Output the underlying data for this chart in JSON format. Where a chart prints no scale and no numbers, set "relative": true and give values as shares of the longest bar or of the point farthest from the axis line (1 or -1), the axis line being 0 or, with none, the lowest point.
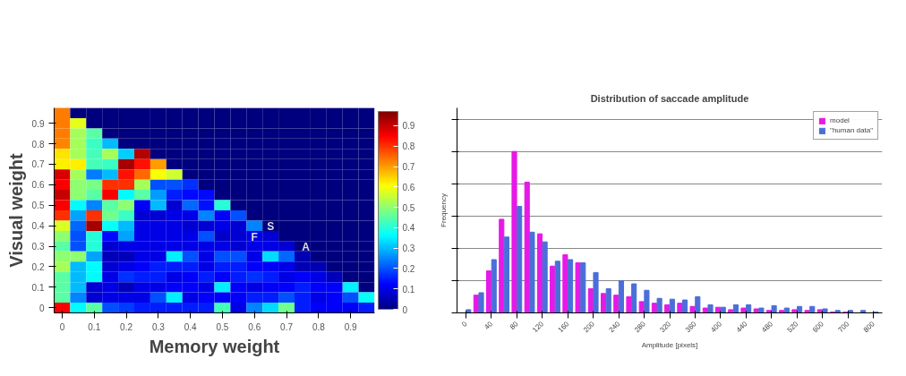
{
  "chart_data": [
    {
      "type": "heatmap",
      "xlabel": "Memory weight",
      "ylabel": "Visual weight",
      "categories": [
        "0",
        null,
        "0.1",
        null,
        "0.2",
        null,
        "0.3",
        null,
        "0.4",
        null,
        "0.5",
        null,
        "0.6",
        null,
        "0.7",
        null,
        "0.8",
        null,
        "0.9",
        null
      ],
      "y_categories": [
        null,
        "0.9",
        null,
        "0.8",
        null,
        "0.7",
        null,
        "0.6",
        null,
        "0.5",
        null,
        "0.4",
        null,
        "0.3",
        null,
        "0.2",
        null,
        "0.1",
        null,
        "0"
      ],
      "clim": [
        0,
        0.97
      ],
      "cticks": [
        0,
        0.1,
        0.2,
        0.3,
        0.4,
        0.5,
        0.6,
        0.7,
        0.8,
        0.9
      ],
      "annotations": [
        "S",
        "F",
        "A"
      ],
      "cells": [
        [
          0.73,
          0,
          0,
          0,
          0,
          0,
          0,
          0,
          0,
          0,
          0,
          0,
          0,
          0,
          0,
          0,
          0,
          0,
          0,
          0
        ],
        [
          0.73,
          0.58,
          0,
          0,
          0,
          0,
          0,
          0,
          0,
          0,
          0,
          0,
          0,
          0,
          0,
          0,
          0,
          0,
          0,
          0
        ],
        [
          0.73,
          0.52,
          0.45,
          0,
          0,
          0,
          0,
          0,
          0,
          0,
          0,
          0,
          0,
          0,
          0,
          0,
          0,
          0,
          0,
          0
        ],
        [
          0.72,
          0.52,
          0.42,
          0.3,
          0,
          0,
          0,
          0,
          0,
          0,
          0,
          0,
          0,
          0,
          0,
          0,
          0,
          0,
          0,
          0
        ],
        [
          0.63,
          0.52,
          0.43,
          0.52,
          0.32,
          0.92,
          0,
          0,
          0,
          0,
          0,
          0,
          0,
          0,
          0,
          0,
          0,
          0,
          0,
          0
        ],
        [
          0.62,
          0.62,
          0.43,
          0.42,
          0.93,
          0.83,
          0.7,
          0,
          0,
          0,
          0,
          0,
          0,
          0,
          0,
          0,
          0,
          0,
          0,
          0
        ],
        [
          0.88,
          0.52,
          0.24,
          0.3,
          0.83,
          0.75,
          0.6,
          0.56,
          0,
          0,
          0,
          0,
          0,
          0,
          0,
          0,
          0,
          0,
          0,
          0
        ],
        [
          0.85,
          0.5,
          0.48,
          0.8,
          0.8,
          0.52,
          0.2,
          0.2,
          0.17,
          0,
          0,
          0,
          0,
          0,
          0,
          0,
          0,
          0,
          0,
          0
        ],
        [
          0.9,
          0.5,
          0.45,
          0.85,
          0.36,
          0.45,
          0.27,
          0.15,
          0.13,
          0.13,
          0,
          0,
          0,
          0,
          0,
          0,
          0,
          0,
          0,
          0
        ],
        [
          0.85,
          0.36,
          0.25,
          0.45,
          0.5,
          0.12,
          0.3,
          0.08,
          0.22,
          0.14,
          0.4,
          0,
          0,
          0,
          0,
          0,
          0,
          0,
          0,
          0
        ],
        [
          0.8,
          0.28,
          0.8,
          0.47,
          0.42,
          0.08,
          0.08,
          0.1,
          0.1,
          0.25,
          0.12,
          0.2,
          0,
          0,
          0,
          0,
          0,
          0,
          0,
          0
        ],
        [
          0.57,
          0.22,
          0.93,
          0.37,
          0.3,
          0.1,
          0.1,
          0.1,
          0.08,
          0.08,
          0.1,
          0.08,
          0.25,
          0,
          0,
          0,
          0,
          0,
          0,
          0
        ],
        [
          0.5,
          0.2,
          0.4,
          0.13,
          0.28,
          0.1,
          0.1,
          0.1,
          0.1,
          0.2,
          0.07,
          0.08,
          0.1,
          0.08,
          0,
          0,
          0,
          0,
          0,
          0
        ],
        [
          0.45,
          0.2,
          0.4,
          0.08,
          0.1,
          0.1,
          0.1,
          0.1,
          0.1,
          0.1,
          0.1,
          0.08,
          0.1,
          0.1,
          0.08,
          0,
          0,
          0,
          0,
          0
        ],
        [
          0.5,
          0.5,
          0.28,
          0.06,
          0.06,
          0.1,
          0.1,
          0.35,
          0.2,
          0.1,
          0.2,
          0.2,
          0.1,
          0.33,
          0.22,
          0.05,
          0,
          0,
          0,
          0
        ],
        [
          0.52,
          0.3,
          0.36,
          0.08,
          0.1,
          0.12,
          0.15,
          0.15,
          0.15,
          0.1,
          0.15,
          0.15,
          0.12,
          0.12,
          0.1,
          0.05,
          0.05,
          0,
          0,
          0
        ],
        [
          0.45,
          0.3,
          0.36,
          0.1,
          0.17,
          0.15,
          0.15,
          0.1,
          0.12,
          0.15,
          0.12,
          0.15,
          0.17,
          0.15,
          0.1,
          0.12,
          0.1,
          0.06,
          0,
          0
        ],
        [
          0.45,
          0.3,
          0.08,
          0.1,
          0.06,
          0.1,
          0.1,
          0.12,
          0.12,
          0.1,
          0.35,
          0.12,
          0.1,
          0.12,
          0.12,
          0.15,
          0.12,
          0.12,
          0.35,
          0
        ],
        [
          0.45,
          0.25,
          0.08,
          0.1,
          0.1,
          0.1,
          0.2,
          0.35,
          0.1,
          0.12,
          0.12,
          0.12,
          0.15,
          0.15,
          0.2,
          0.15,
          0.1,
          0.12,
          0.2,
          0.37
        ],
        [
          0.85,
          0.36,
          0.45,
          0.2,
          0.18,
          0.15,
          0.15,
          0.15,
          0.15,
          0.15,
          0.43,
          0.1,
          0.25,
          0.33,
          0.47,
          0.15,
          0.12,
          0.12,
          0.12,
          0.15
        ]
      ]
    },
    {
      "type": "bar",
      "title": "Distribution of saccade amplitude",
      "xlabel": "Amplitude [pixels]",
      "ylabel": "Frequency",
      "relative": true,
      "grid": "y",
      "legend": "top right",
      "categories": [
        "0",
        null,
        "40",
        null,
        "80",
        null,
        "120",
        null,
        "160",
        null,
        "200",
        null,
        "240",
        null,
        "280",
        null,
        "320",
        null,
        "360",
        null,
        "400",
        null,
        "440",
        null,
        "480",
        null,
        "520",
        null,
        "600",
        null,
        "700",
        null,
        "800"
      ],
      "series": [
        {
          "name": "model",
          "color": "#e619e6",
          "values": [
            0,
            0.11,
            0.26,
            0.58,
            1.0,
            0.81,
            0.49,
            0.29,
            0.36,
            0.31,
            0.15,
            0.12,
            0.11,
            0.1,
            0.07,
            0.06,
            0.05,
            0.06,
            0.04,
            0.03,
            0.035,
            0.02,
            0.03,
            0.025,
            0.015,
            0.015,
            0.02,
            0.015,
            0.02,
            0.005,
            0.005,
            0,
            0
          ]
        },
        {
          "name": "\"human data\"",
          "color": "#4a6fd8",
          "values": [
            0.02,
            0.125,
            0.33,
            0.47,
            0.66,
            0.5,
            0.44,
            0.32,
            0.33,
            0.31,
            0.25,
            0.15,
            0.2,
            0.18,
            0.14,
            0.09,
            0.085,
            0.08,
            0.1,
            0.05,
            0.035,
            0.05,
            0.05,
            0.03,
            0.045,
            0.03,
            0.04,
            0.04,
            0.025,
            0.015,
            0.015,
            0.015,
            0.005
          ]
        }
      ]
    }
  ]
}
